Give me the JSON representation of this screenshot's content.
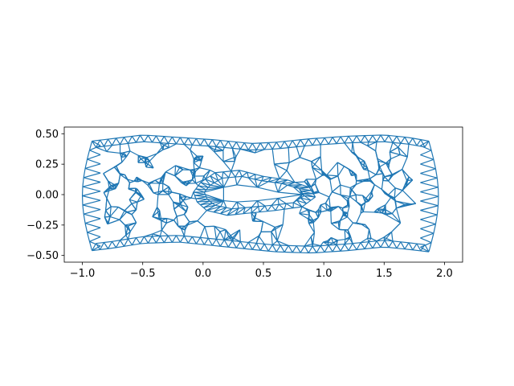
{
  "chart_data": {
    "type": "triplot",
    "title": "",
    "xlabel": "",
    "ylabel": "",
    "xlim": [
      -1.15,
      2.15
    ],
    "ylim": [
      -0.555,
      0.555
    ],
    "xticks": [
      -1.0,
      -0.5,
      0.0,
      0.5,
      1.0,
      1.5,
      2.0
    ],
    "xtick_labels": [
      "−1.0",
      "−0.5",
      "0.0",
      "0.5",
      "1.0",
      "1.5",
      "2.0"
    ],
    "yticks": [
      0.5,
      0.25,
      0.0,
      -0.25,
      -0.5
    ],
    "ytick_labels": [
      "0.50",
      "0.25",
      "0.00",
      "−0.25",
      "−0.50"
    ],
    "grid": false,
    "legend": "none",
    "line_color": "#1f77b4",
    "outer_boundary_top": [
      [
        -0.92,
        0.44
      ],
      [
        -0.75,
        0.46
      ],
      [
        -0.5,
        0.49
      ],
      [
        -0.2,
        0.47
      ],
      [
        0.1,
        0.45
      ],
      [
        0.4,
        0.42
      ],
      [
        0.6,
        0.43
      ],
      [
        0.9,
        0.46
      ],
      [
        1.2,
        0.48
      ],
      [
        1.5,
        0.49
      ],
      [
        1.7,
        0.47
      ],
      [
        1.87,
        0.44
      ]
    ],
    "outer_boundary_bottom": [
      [
        -0.92,
        -0.46
      ],
      [
        -0.75,
        -0.44
      ],
      [
        -0.5,
        -0.4
      ],
      [
        -0.2,
        -0.39
      ],
      [
        0.1,
        -0.42
      ],
      [
        0.4,
        -0.45
      ],
      [
        0.6,
        -0.47
      ],
      [
        0.9,
        -0.48
      ],
      [
        1.2,
        -0.46
      ],
      [
        1.5,
        -0.43
      ],
      [
        1.7,
        -0.45
      ],
      [
        1.87,
        -0.47
      ]
    ],
    "left_edge_x": -1.0,
    "right_edge_x": 1.95,
    "hole_boundary": [
      [
        -0.08,
        0.02
      ],
      [
        -0.02,
        0.1
      ],
      [
        0.1,
        0.18
      ],
      [
        0.3,
        0.2
      ],
      [
        0.5,
        0.15
      ],
      [
        0.7,
        0.12
      ],
      [
        0.88,
        0.06
      ],
      [
        0.93,
        -0.02
      ],
      [
        0.82,
        -0.1
      ],
      [
        0.6,
        -0.13
      ],
      [
        0.4,
        -0.15
      ],
      [
        0.2,
        -0.17
      ],
      [
        0.03,
        -0.13
      ],
      [
        -0.05,
        -0.06
      ]
    ],
    "airfoil_cutout": [
      [
        0.17,
        0.06
      ],
      [
        0.28,
        0.08
      ],
      [
        0.45,
        0.06
      ],
      [
        0.62,
        0.02
      ],
      [
        0.82,
        0.0
      ],
      [
        0.62,
        -0.03
      ],
      [
        0.45,
        -0.05
      ],
      [
        0.28,
        -0.06
      ],
      [
        0.17,
        -0.05
      ]
    ],
    "density_centers": [
      [
        -0.55,
        0.0
      ],
      [
        -0.2,
        0.1
      ],
      [
        1.4,
        0.1
      ],
      [
        1.15,
        -0.15
      ]
    ]
  }
}
